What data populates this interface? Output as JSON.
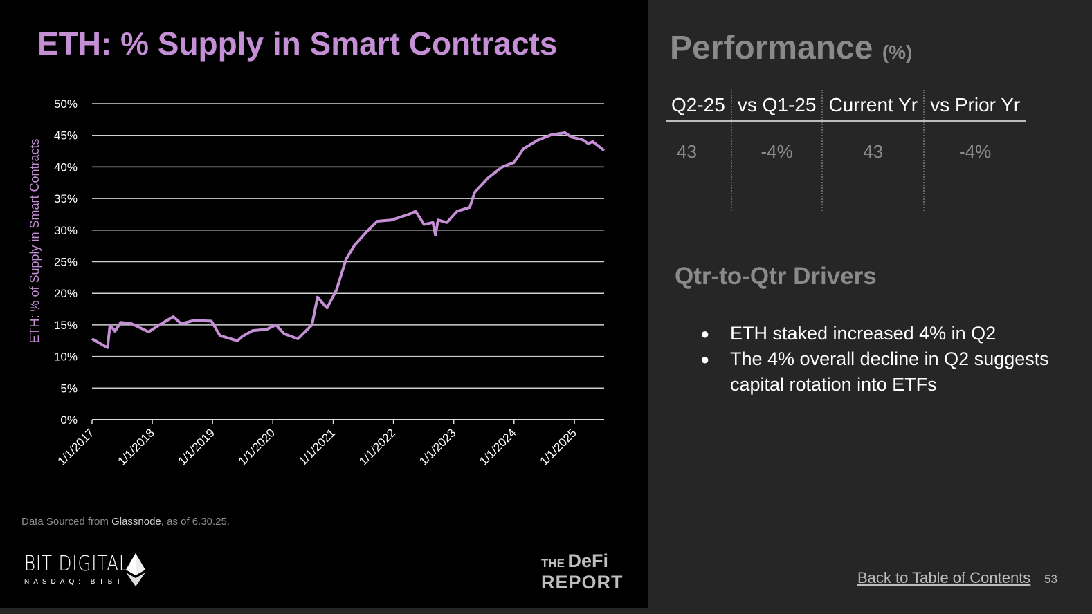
{
  "slide_title": "ETH: % Supply in Smart Contracts",
  "chart_data": {
    "type": "line",
    "title": "",
    "ylabel": "ETH: % of Supply in Smart Contracts",
    "xlabel": "",
    "ylim": [
      0,
      50
    ],
    "xlim": [
      "2017-01-01",
      "2025-06-30"
    ],
    "grid": true,
    "color": "#c58fd6",
    "yticks": [
      "0%",
      "5%",
      "10%",
      "15%",
      "20%",
      "25%",
      "30%",
      "35%",
      "40%",
      "45%",
      "50%"
    ],
    "xticks": [
      "1/1/2017",
      "1/1/2018",
      "1/1/2019",
      "1/1/2020",
      "1/1/2021",
      "1/1/2022",
      "1/1/2023",
      "1/1/2024",
      "1/1/2025"
    ],
    "series": [
      {
        "values": [
          [
            "2017-01-01",
            12.8
          ],
          [
            "2017-03-15",
            11.7
          ],
          [
            "2017-04-05",
            11.4
          ],
          [
            "2017-04-20",
            15.0
          ],
          [
            "2017-05-20",
            14.0
          ],
          [
            "2017-06-25",
            15.4
          ],
          [
            "2017-08-28",
            15.2
          ],
          [
            "2017-12-10",
            13.9
          ],
          [
            "2018-02-13",
            15.0
          ],
          [
            "2018-05-08",
            16.3
          ],
          [
            "2018-06-25",
            15.2
          ],
          [
            "2018-09-10",
            15.7
          ],
          [
            "2018-12-25",
            15.6
          ],
          [
            "2019-02-15",
            13.3
          ],
          [
            "2019-06-01",
            12.5
          ],
          [
            "2019-07-01",
            13.2
          ],
          [
            "2019-09-01",
            14.1
          ],
          [
            "2019-11-25",
            14.3
          ],
          [
            "2020-01-20",
            15.0
          ],
          [
            "2020-03-10",
            13.6
          ],
          [
            "2020-06-01",
            12.8
          ],
          [
            "2020-08-25",
            15.0
          ],
          [
            "2020-09-28",
            19.4
          ],
          [
            "2020-11-02",
            18.3
          ],
          [
            "2020-11-25",
            17.7
          ],
          [
            "2021-01-20",
            20.5
          ],
          [
            "2021-03-20",
            25.4
          ],
          [
            "2021-05-10",
            27.6
          ],
          [
            "2021-07-25",
            29.8
          ],
          [
            "2021-09-25",
            31.4
          ],
          [
            "2021-12-20",
            31.6
          ],
          [
            "2022-04-05",
            32.5
          ],
          [
            "2022-05-15",
            33.0
          ],
          [
            "2022-07-05",
            30.9
          ],
          [
            "2022-08-28",
            31.2
          ],
          [
            "2022-09-12",
            29.2
          ],
          [
            "2022-09-28",
            31.6
          ],
          [
            "2022-11-20",
            31.2
          ],
          [
            "2023-01-22",
            33.0
          ],
          [
            "2023-04-08",
            33.6
          ],
          [
            "2023-05-08",
            36.0
          ],
          [
            "2023-07-30",
            38.3
          ],
          [
            "2023-10-22",
            40.0
          ],
          [
            "2024-01-01",
            40.7
          ],
          [
            "2024-02-28",
            42.9
          ],
          [
            "2024-05-22",
            44.2
          ],
          [
            "2024-08-15",
            45.1
          ],
          [
            "2024-11-05",
            45.4
          ],
          [
            "2024-12-16",
            44.7
          ],
          [
            "2025-02-20",
            44.3
          ],
          [
            "2025-03-25",
            43.7
          ],
          [
            "2025-04-22",
            44.0
          ],
          [
            "2025-06-30",
            42.6
          ]
        ]
      }
    ]
  },
  "source": {
    "prefix": "Data Sourced from ",
    "name": "Glassnode",
    "suffix": ", as of 6.30.25."
  },
  "logos": {
    "bit_digital": "BIT DIGITAL",
    "bit_digital_sub": "NASDAQ: BTBT",
    "defi_the": "THE",
    "defi_name": "DeFi",
    "defi_report": "REPORT"
  },
  "performance": {
    "title": "Performance",
    "unit": "(%)",
    "headers": [
      "Q2-25",
      "vs Q1-25",
      "Current Yr",
      "vs Prior Yr"
    ],
    "values": [
      "43",
      "-4%",
      "43",
      "-4%"
    ]
  },
  "drivers": {
    "title": "Qtr-to-Qtr Drivers",
    "items": [
      "ETH staked increased 4% in Q2",
      "The 4% overall decline in Q2 suggests capital rotation into ETFs"
    ]
  },
  "footer": {
    "toc_link": "Back to Table of Contents",
    "page": "53"
  }
}
